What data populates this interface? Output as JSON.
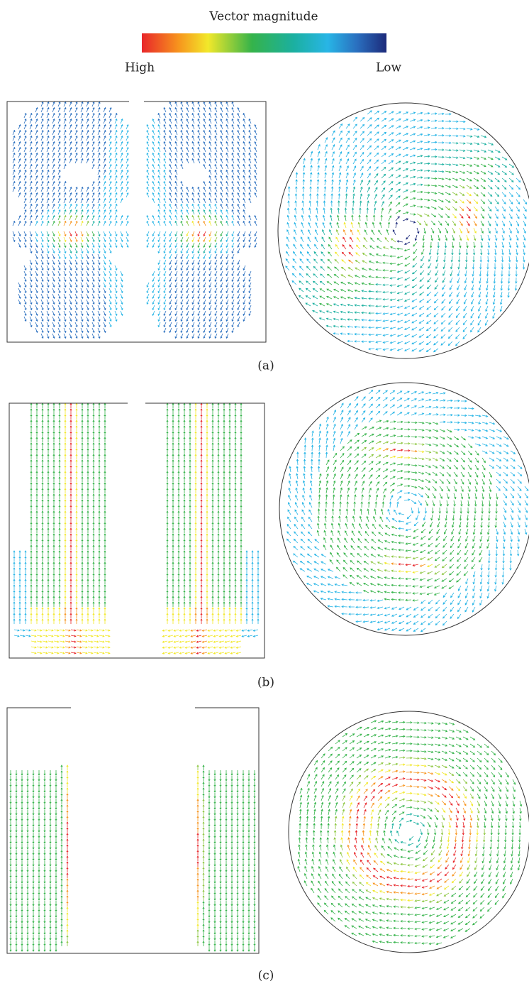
{
  "colorbar": {
    "title": "Vector magnitude",
    "high_label": "High",
    "low_label": "Low"
  },
  "panels": [
    {
      "label": "(a)"
    },
    {
      "label": "(b)"
    },
    {
      "label": "(c)"
    }
  ]
}
